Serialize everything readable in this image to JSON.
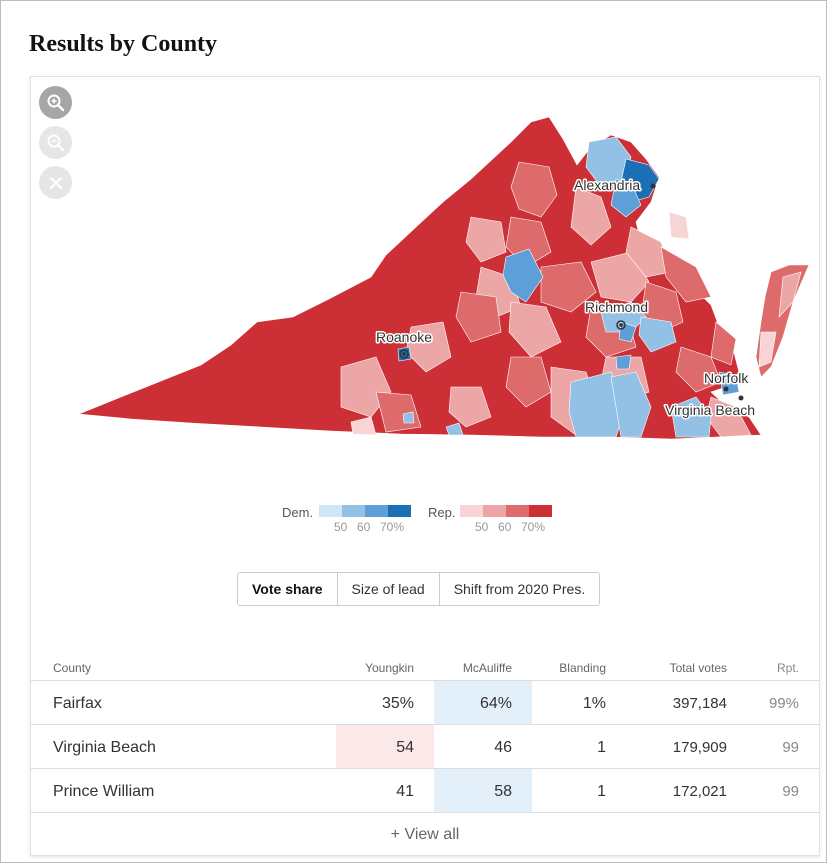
{
  "title": "Results by County",
  "map": {
    "zoom_in_icon": "zoom-in-icon",
    "zoom_out_icon": "zoom-out-icon",
    "reset_icon": "close-icon",
    "cities": {
      "alexandria": "Alexandria",
      "richmond": "Richmond",
      "roanoke": "Roanoke",
      "norfolk": "Norfolk",
      "virginia_beach": "Virginia Beach"
    },
    "colors": {
      "dem": [
        "#cfe6f7",
        "#93c1e6",
        "#5f9fd8",
        "#1d6fb5"
      ],
      "rep": [
        "#f8d4d4",
        "#eda6a6",
        "#de6b6b",
        "#cc2f35"
      ]
    }
  },
  "legend": {
    "dem_label": "Dem.",
    "rep_label": "Rep.",
    "dem_ticks": [
      "50",
      "60",
      "70%"
    ],
    "rep_ticks": [
      "50",
      "60",
      "70%"
    ]
  },
  "tabs": [
    {
      "label": "Vote share",
      "active": true
    },
    {
      "label": "Size of lead",
      "active": false
    },
    {
      "label": "Shift from 2020 Pres.",
      "active": false
    }
  ],
  "table": {
    "headers": {
      "county": "County",
      "youngkin": "Youngkin",
      "mcauliffe": "McAuliffe",
      "blanding": "Blanding",
      "total": "Total votes",
      "rpt": "Rpt."
    },
    "rows": [
      {
        "county": "Fairfax",
        "youngkin": "35%",
        "mcauliffe": "64%",
        "blanding": "1%",
        "total": "397,184",
        "rpt": "99%",
        "winner": "mcauliffe"
      },
      {
        "county": "Virginia Beach",
        "youngkin": "54",
        "mcauliffe": "46",
        "blanding": "1",
        "total": "179,909",
        "rpt": "99",
        "winner": "youngkin"
      },
      {
        "county": "Prince William",
        "youngkin": "41",
        "mcauliffe": "58",
        "blanding": "1",
        "total": "172,021",
        "rpt": "99",
        "winner": "mcauliffe"
      }
    ],
    "view_all": "+ View all"
  }
}
